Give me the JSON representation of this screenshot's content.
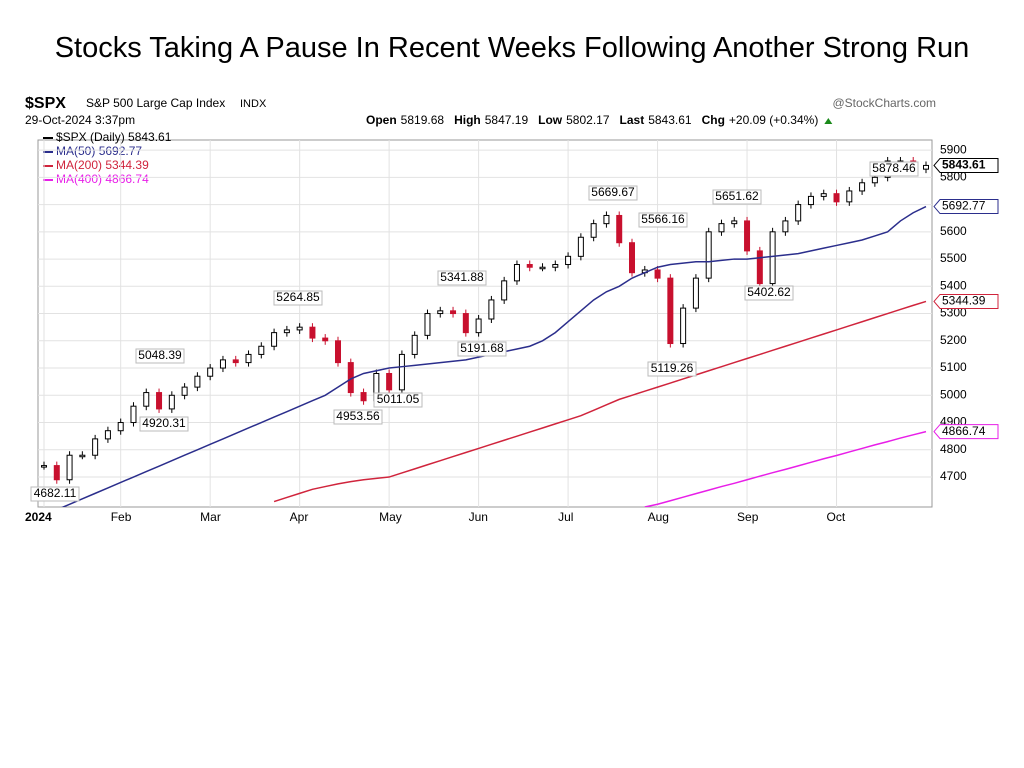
{
  "chart_data": {
    "type": "candlestick",
    "title": "Stocks Taking A Pause In Recent Weeks Following Another Strong Run",
    "symbol": "$SPX",
    "index_name": "S&P 500 Large Cap Index",
    "exchange": "INDX",
    "source": "@StockCharts.com",
    "timestamp": "29-Oct-2024 3:37pm",
    "quote": [
      {
        "label": "Open",
        "value": "5819.68"
      },
      {
        "label": "High",
        "value": "5847.19"
      },
      {
        "label": "Low",
        "value": "5802.17"
      },
      {
        "label": "Last",
        "value": "5843.61"
      },
      {
        "label": "Chg",
        "value": "+20.09 (+0.34%)"
      }
    ],
    "categories": [
      "2024",
      null,
      null,
      null,
      null,
      null,
      "Feb",
      null,
      null,
      null,
      null,
      null,
      null,
      "Mar",
      null,
      null,
      null,
      null,
      null,
      null,
      "Apr",
      null,
      null,
      null,
      null,
      null,
      null,
      "May",
      null,
      null,
      null,
      null,
      null,
      null,
      "Jun",
      null,
      null,
      null,
      null,
      null,
      null,
      "Jul",
      null,
      null,
      null,
      null,
      null,
      null,
      "Aug",
      null,
      null,
      null,
      null,
      null,
      null,
      "Sep",
      null,
      null,
      null,
      null,
      null,
      null,
      "Oct",
      null,
      null,
      null,
      null,
      null,
      null,
      null
    ],
    "series": [
      {
        "name": "$SPX (Daily)",
        "color": "#000000",
        "down_color": "#c8102e",
        "values": [
          4742,
          4690,
          4780,
          4780,
          4840,
          4870,
          4900,
          4960,
          5010,
          4950,
          5000,
          5030,
          5070,
          5100,
          5130,
          5120,
          5150,
          5180,
          5230,
          5240,
          5250,
          5210,
          5200,
          5120,
          5010,
          4980,
          5080,
          5020,
          5150,
          5220,
          5300,
          5310,
          5300,
          5230,
          5280,
          5350,
          5420,
          5480,
          5470,
          5470,
          5480,
          5510,
          5580,
          5630,
          5660,
          5560,
          5450,
          5460,
          5430,
          5190,
          5320,
          5430,
          5600,
          5630,
          5640,
          5530,
          5410,
          5600,
          5640,
          5700,
          5730,
          5740,
          5710,
          5750,
          5780,
          5800,
          5860,
          5860,
          5830,
          5843.61
        ]
      },
      {
        "name": "MA(50)",
        "color": "#2b2e8c",
        "values": [
          4560,
          4580,
          4600,
          4620,
          4640,
          4660,
          4680,
          4700,
          4720,
          4740,
          4760,
          4780,
          4800,
          4820,
          4840,
          4860,
          4880,
          4900,
          4920,
          4940,
          4960,
          4980,
          5000,
          5030,
          5060,
          5080,
          5090,
          5100,
          5105,
          5110,
          5115,
          5120,
          5125,
          5130,
          5140,
          5150,
          5160,
          5170,
          5180,
          5200,
          5230,
          5270,
          5310,
          5350,
          5380,
          5400,
          5430,
          5450,
          5470,
          5480,
          5485,
          5490,
          5490,
          5495,
          5500,
          5500,
          5505,
          5510,
          5515,
          5520,
          5530,
          5540,
          5550,
          5560,
          5570,
          5585,
          5600,
          5640,
          5670,
          5692.77
        ]
      },
      {
        "name": "MA(200)",
        "color": "#d0243c",
        "values": [
          null,
          null,
          null,
          null,
          null,
          null,
          null,
          null,
          null,
          null,
          null,
          null,
          null,
          null,
          null,
          null,
          null,
          null,
          4610,
          4625,
          4640,
          4655,
          4665,
          4675,
          4683,
          4690,
          4695,
          4700,
          4715,
          4730,
          4745,
          4760,
          4775,
          4790,
          4805,
          4820,
          4835,
          4850,
          4865,
          4880,
          4895,
          4910,
          4925,
          4945,
          4965,
          4985,
          5000,
          5015,
          5030,
          5045,
          5060,
          5075,
          5090,
          5105,
          5120,
          5135,
          5150,
          5165,
          5180,
          5195,
          5210,
          5225,
          5240,
          5255,
          5270,
          5285,
          5300,
          5315,
          5330,
          5344.39
        ]
      },
      {
        "name": "MA(400)",
        "color": "#e81ee8",
        "values": [
          null,
          null,
          null,
          null,
          null,
          null,
          null,
          null,
          null,
          null,
          null,
          null,
          null,
          null,
          null,
          null,
          null,
          null,
          null,
          null,
          null,
          null,
          null,
          null,
          null,
          null,
          null,
          null,
          null,
          null,
          null,
          null,
          null,
          null,
          null,
          null,
          null,
          null,
          null,
          null,
          null,
          null,
          null,
          null,
          null,
          null,
          null,
          4590,
          4600,
          4613,
          4626,
          4639,
          4652,
          4665,
          4677,
          4690,
          4703,
          4716,
          4728,
          4741,
          4754,
          4767,
          4779,
          4792,
          4805,
          4818,
          4830,
          4843,
          4855,
          4866.74
        ]
      }
    ],
    "annotations": [
      "4682.11",
      "5048.39",
      "4920.31",
      "5264.85",
      "4953.56",
      "5011.05",
      "5341.88",
      "5191.68",
      "5669.67",
      "5566.16",
      "5119.26",
      "5651.62",
      "5402.62",
      "5878.46"
    ],
    "ylim": [
      4590,
      5937
    ],
    "yticks": [
      4700,
      4800,
      4900,
      5000,
      5100,
      5200,
      5300,
      5400,
      5500,
      5600,
      5700,
      5800,
      5900
    ],
    "grid": true
  }
}
